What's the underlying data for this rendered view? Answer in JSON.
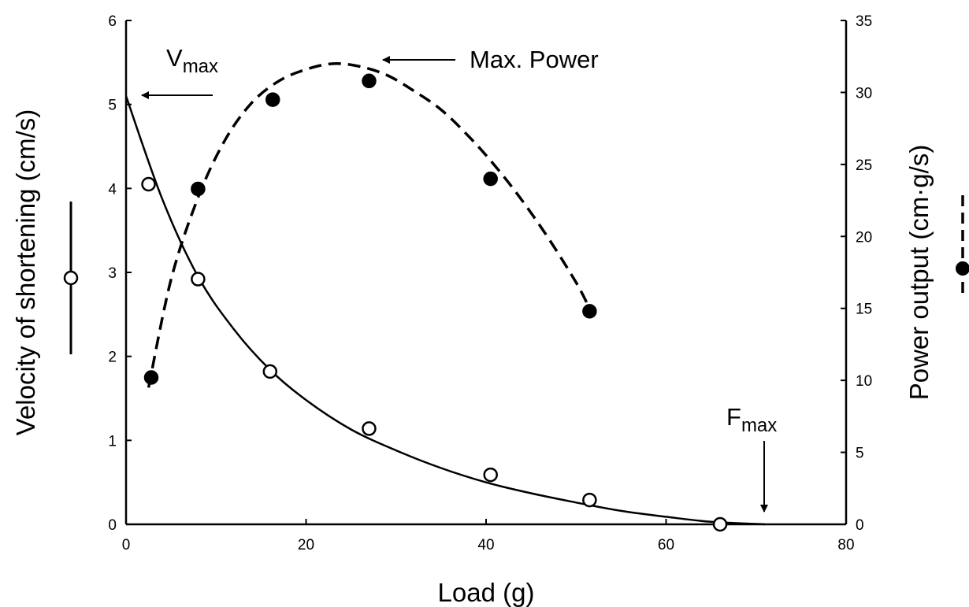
{
  "chart_data": {
    "type": "scatter",
    "xlabel": "Load (g)",
    "ylabel": "Velocity of shortening (cm/s)",
    "y2label": "Power output (cm·g/s)",
    "xlim": [
      0,
      80
    ],
    "ylim": [
      0,
      6
    ],
    "y2lim": [
      0,
      35
    ],
    "x_ticks": [
      0,
      20,
      40,
      60,
      80
    ],
    "y_ticks": [
      0,
      1,
      2,
      3,
      4,
      5,
      6
    ],
    "y2_ticks": [
      0,
      5,
      10,
      15,
      20,
      25,
      30,
      35
    ],
    "series": [
      {
        "axis": "left",
        "marker": "open-circle",
        "line": "solid",
        "x": [
          2.5,
          8,
          16,
          27,
          40.5,
          51.5,
          66
        ],
        "y": [
          4.05,
          2.92,
          1.82,
          1.14,
          0.59,
          0.29,
          0.0
        ],
        "fit": {
          "x": [
            0,
            4,
            8,
            12,
            16,
            20,
            25,
            30,
            35,
            40,
            45,
            50,
            55,
            60,
            65,
            71
          ],
          "y": [
            5.1,
            3.88,
            2.95,
            2.32,
            1.84,
            1.48,
            1.13,
            0.88,
            0.67,
            0.5,
            0.37,
            0.26,
            0.16,
            0.09,
            0.03,
            0.0
          ]
        }
      },
      {
        "axis": "right",
        "marker": "filled-circle",
        "line": "dashed",
        "x": [
          2.8,
          8,
          16.3,
          27,
          40.5,
          51.5
        ],
        "y": [
          10.2,
          23.3,
          29.5,
          30.8,
          24.0,
          14.8
        ],
        "fit": {
          "x": [
            2.5,
            5,
            8,
            11,
            14,
            17,
            20,
            23,
            26,
            29,
            32,
            35,
            38,
            41,
            44,
            47,
            50,
            51.5
          ],
          "y": [
            9.5,
            17.0,
            22.7,
            26.7,
            29.3,
            30.8,
            31.6,
            32.0,
            31.8,
            31.2,
            30.1,
            28.8,
            27.0,
            24.9,
            22.5,
            19.8,
            16.8,
            15.0
          ]
        }
      }
    ],
    "annotations": {
      "vmax": {
        "main": "V",
        "sub": "max"
      },
      "max_power": "Max. Power",
      "fmax": {
        "main": "F",
        "sub": "max"
      }
    },
    "legend": {
      "left": "open circle with solid line",
      "right": "filled circle with dashed line"
    }
  }
}
